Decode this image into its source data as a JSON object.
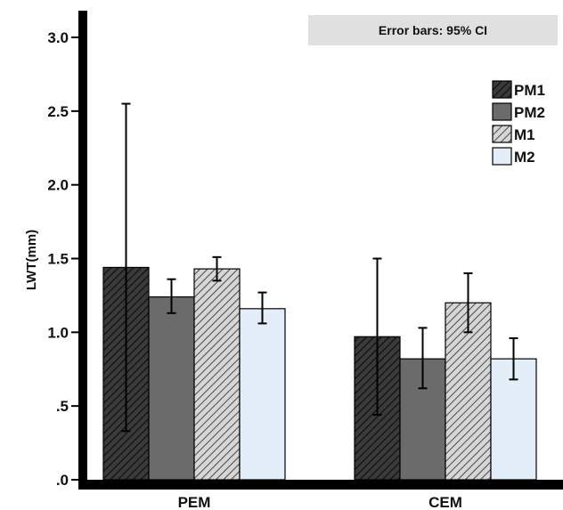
{
  "chart_data": {
    "type": "bar",
    "ylabel": "LWT(mm)",
    "xlabel": "",
    "ylim": [
      0,
      3.1
    ],
    "yticks": [
      0,
      0.5,
      1.0,
      1.5,
      2.0,
      2.5,
      3.0
    ],
    "ytick_labels": [
      ".0",
      ".5",
      "1.0",
      "1.5",
      "2.0",
      "2.5",
      "3.0"
    ],
    "categories": [
      "PEM",
      "CEM"
    ],
    "annotation": "Error bars: 95% CI",
    "legend_position": "top-right",
    "grid": false,
    "series": [
      {
        "name": "PM1",
        "values": [
          1.44,
          0.97
        ],
        "ci_low": [
          0.33,
          0.44
        ],
        "ci_high": [
          2.55,
          1.5
        ],
        "pattern": "hatch-dark",
        "color": "#3a3a3a"
      },
      {
        "name": "PM2",
        "values": [
          1.24,
          0.82
        ],
        "ci_low": [
          1.13,
          0.62
        ],
        "ci_high": [
          1.36,
          1.03
        ],
        "pattern": "solid",
        "color": "#6b6b6b"
      },
      {
        "name": "M1",
        "values": [
          1.43,
          1.2
        ],
        "ci_low": [
          1.35,
          1.0
        ],
        "ci_high": [
          1.51,
          1.4
        ],
        "pattern": "hatch-light",
        "color": "#c8c8c8"
      },
      {
        "name": "M2",
        "values": [
          1.16,
          0.82
        ],
        "ci_low": [
          1.06,
          0.68
        ],
        "ci_high": [
          1.27,
          0.96
        ],
        "pattern": "solid",
        "color": "#e3eef9"
      }
    ]
  }
}
